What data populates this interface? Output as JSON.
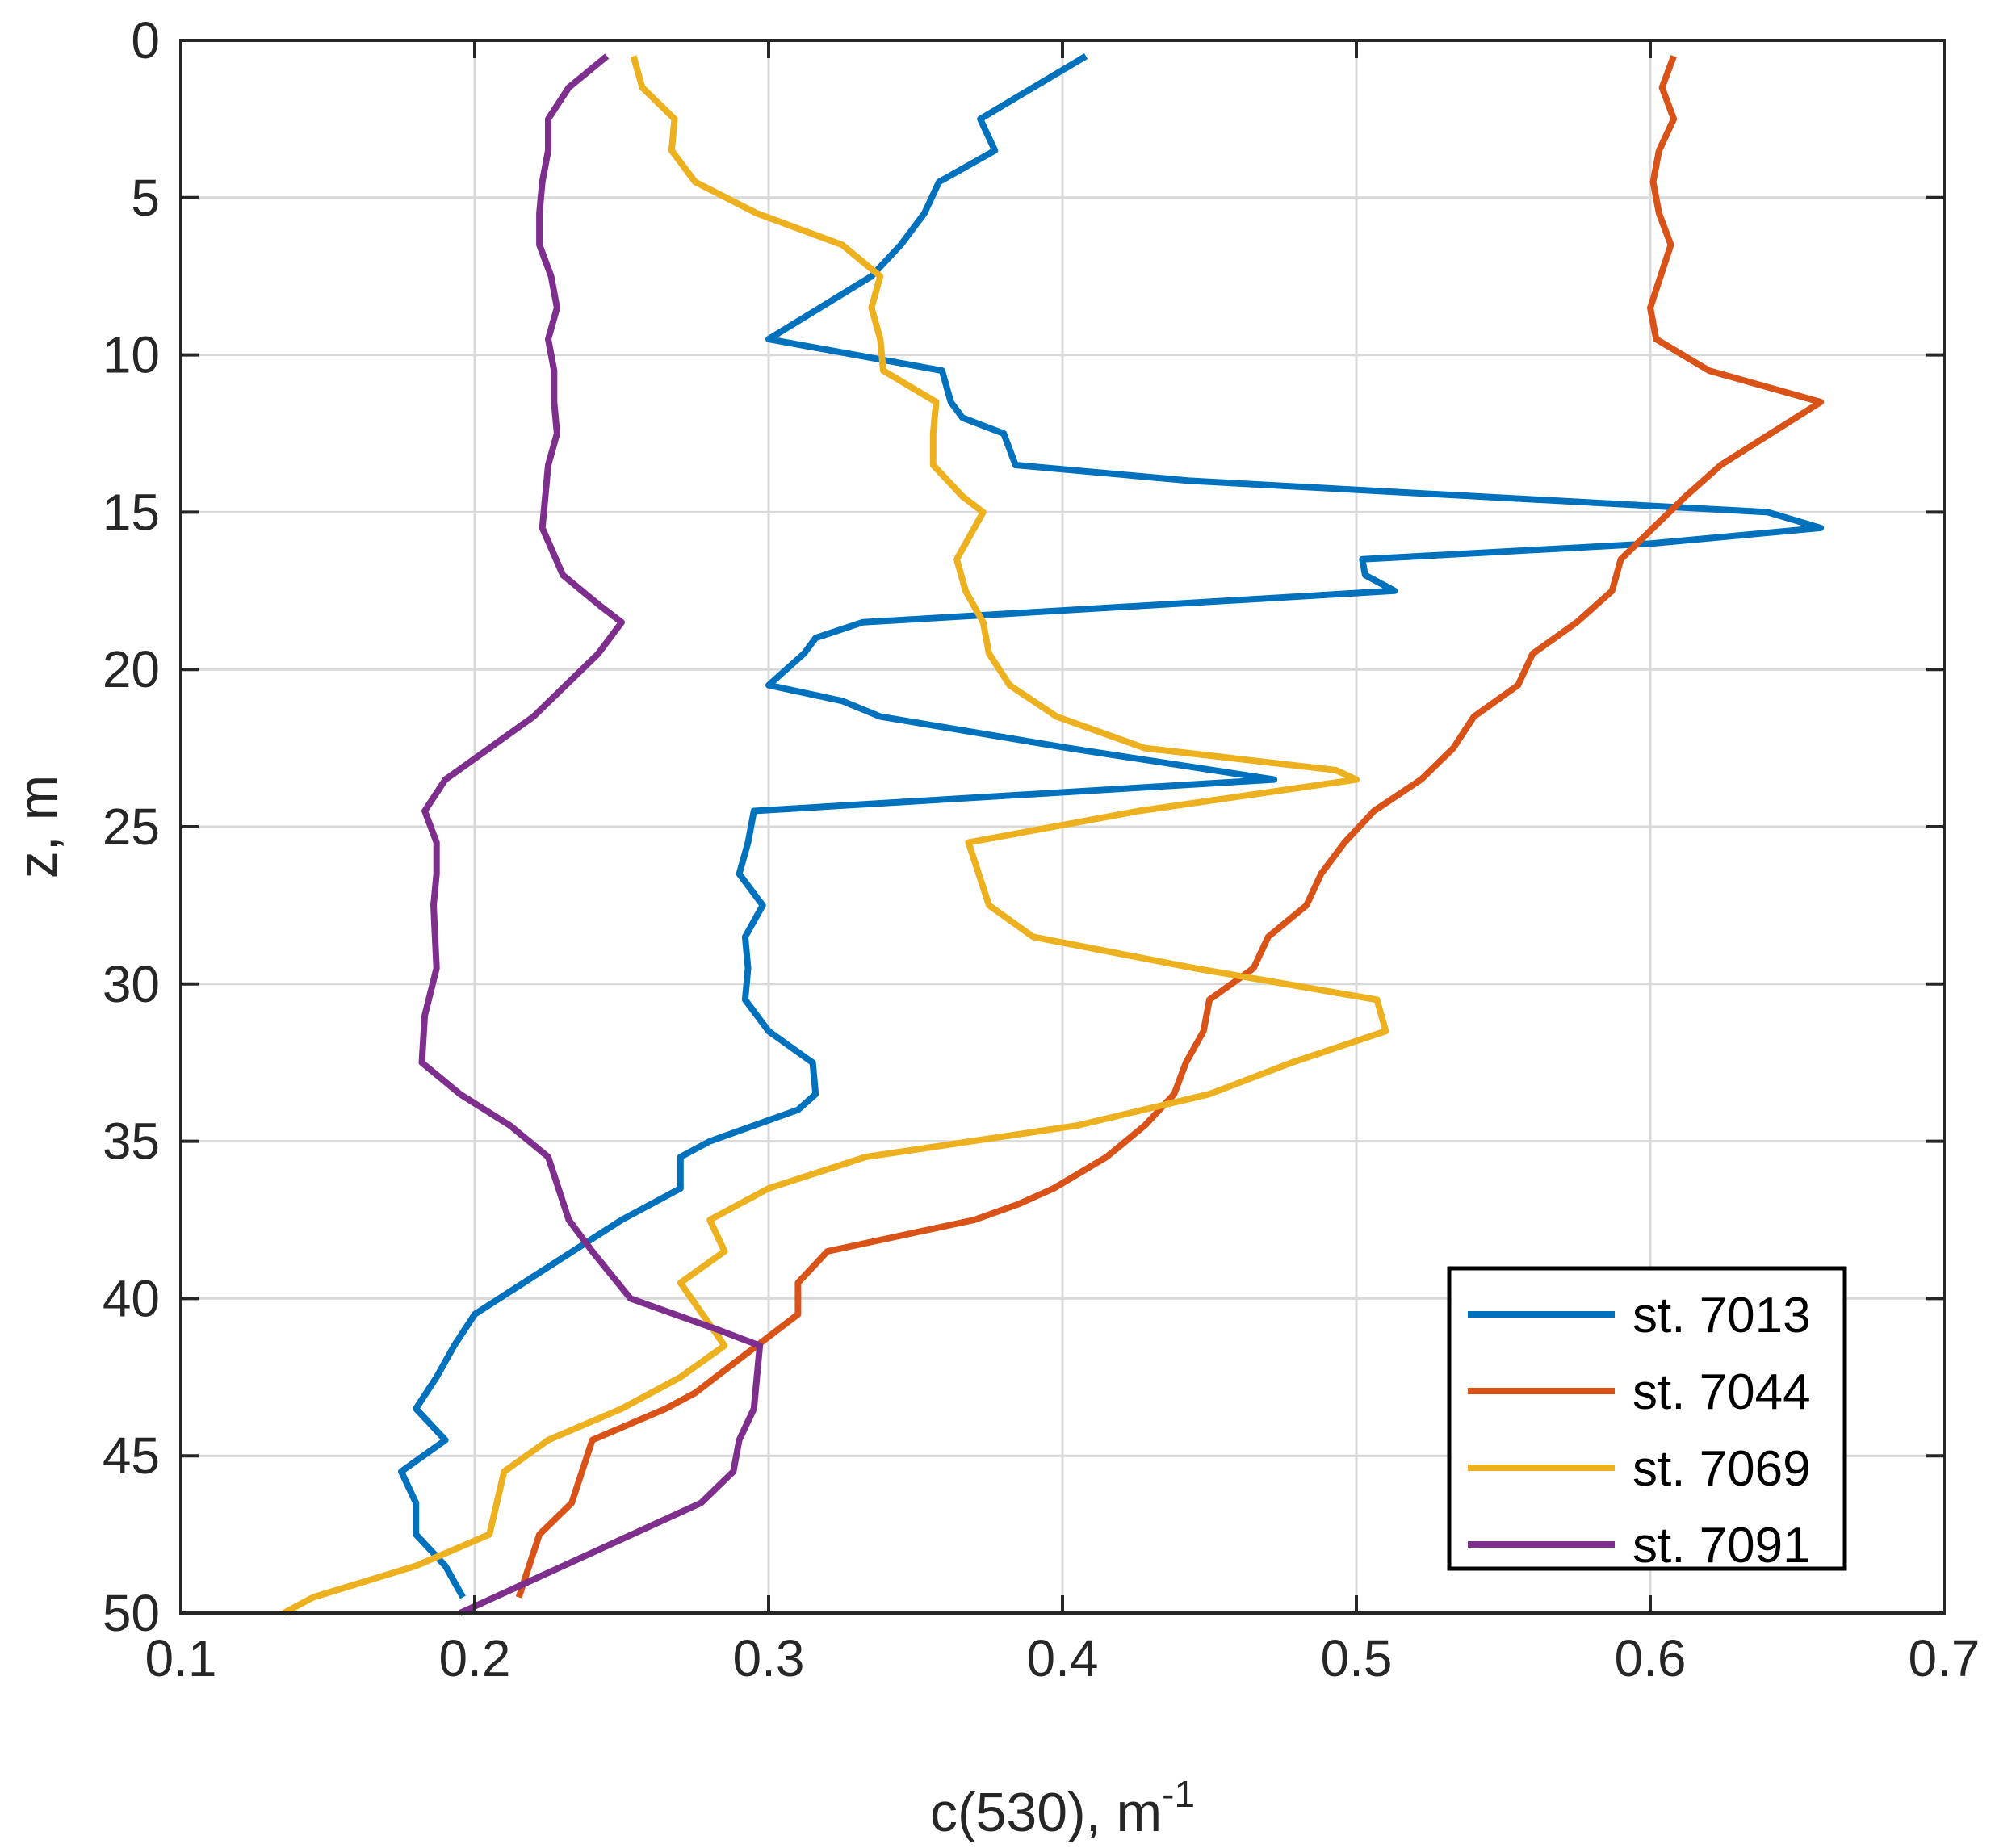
{
  "chart_data": {
    "type": "line",
    "title": "",
    "xlabel": "c(530), m",
    "xlabel_sup": "-1",
    "ylabel": "z, m",
    "xlim": [
      0.1,
      0.7
    ],
    "ylim": [
      0,
      50
    ],
    "y_reversed": true,
    "grid": true,
    "x_ticks": [
      0.1,
      0.2,
      0.3,
      0.4,
      0.5,
      0.6,
      0.7
    ],
    "x_tick_labels": [
      "0.1",
      "0.2",
      "0.3",
      "0.4",
      "0.5",
      "0.6",
      "0.7"
    ],
    "y_ticks": [
      0,
      5,
      10,
      15,
      20,
      25,
      30,
      35,
      40,
      45,
      50
    ],
    "y_tick_labels": [
      "0",
      "5",
      "10",
      "15",
      "20",
      "25",
      "30",
      "35",
      "40",
      "45",
      "50"
    ],
    "legend_position": "bottom-right",
    "series": [
      {
        "name": "st. 7013",
        "color": "#0072BD",
        "x": [
          0.408,
          0.39,
          0.372,
          0.377,
          0.358,
          0.353,
          0.345,
          0.335,
          0.3,
          0.359,
          0.362,
          0.366,
          0.38,
          0.384,
          0.443,
          0.64,
          0.658,
          0.6,
          0.502,
          0.503,
          0.513,
          0.332,
          0.316,
          0.312,
          0.3,
          0.325,
          0.338,
          0.402,
          0.472,
          0.295,
          0.293,
          0.29,
          0.298,
          0.292,
          0.293,
          0.292,
          0.3,
          0.315,
          0.316,
          0.31,
          0.28,
          0.27,
          0.27,
          0.25,
          0.225,
          0.2,
          0.193,
          0.187,
          0.18,
          0.19,
          0.175,
          0.18,
          0.18,
          0.19,
          0.196
        ],
        "y": [
          0.5,
          1.5,
          2.5,
          3.5,
          4.5,
          5.5,
          6.5,
          7.5,
          9.5,
          10.5,
          11.5,
          12,
          12.5,
          13.5,
          14,
          15,
          15.5,
          16,
          16.5,
          17,
          17.5,
          18.5,
          19,
          19.5,
          20.5,
          21,
          21.5,
          22.5,
          23.5,
          24.5,
          25.5,
          26.5,
          27.5,
          28.5,
          29.5,
          30.5,
          31.5,
          32.5,
          33.5,
          34,
          35,
          35.5,
          36.5,
          37.5,
          39,
          40.5,
          41.5,
          42.5,
          43.5,
          44.5,
          45.5,
          46.5,
          47.5,
          48.5,
          49.5
        ]
      },
      {
        "name": "st. 7044",
        "color": "#D95319",
        "x": [
          0.608,
          0.604,
          0.608,
          0.603,
          0.601,
          0.603,
          0.607,
          0.6,
          0.602,
          0.62,
          0.658,
          0.641,
          0.624,
          0.612,
          0.601,
          0.59,
          0.587,
          0.575,
          0.56,
          0.555,
          0.54,
          0.533,
          0.522,
          0.506,
          0.496,
          0.488,
          0.483,
          0.47,
          0.465,
          0.45,
          0.448,
          0.442,
          0.438,
          0.428,
          0.415,
          0.397,
          0.385,
          0.37,
          0.32,
          0.31,
          0.31,
          0.275,
          0.265,
          0.24,
          0.233,
          0.222,
          0.215
        ],
        "y": [
          0.5,
          1.5,
          2.5,
          3.5,
          4.5,
          5.5,
          6.5,
          8.5,
          9.5,
          10.5,
          11.5,
          12.5,
          13.5,
          14.5,
          15.5,
          16.5,
          17.5,
          18.5,
          19.5,
          20.5,
          21.5,
          22.5,
          23.5,
          24.5,
          25.5,
          26.5,
          27.5,
          28.5,
          29.5,
          30.5,
          31.5,
          32.5,
          33.5,
          34.5,
          35.5,
          36.5,
          37,
          37.5,
          38.5,
          39.5,
          40.5,
          43,
          43.5,
          44.5,
          46.5,
          47.5,
          49.5
        ]
      },
      {
        "name": "st. 7069",
        "color": "#EDB120",
        "x": [
          0.254,
          0.257,
          0.268,
          0.267,
          0.275,
          0.296,
          0.325,
          0.338,
          0.335,
          0.338,
          0.339,
          0.357,
          0.356,
          0.356,
          0.366,
          0.373,
          0.364,
          0.367,
          0.373,
          0.375,
          0.382,
          0.398,
          0.428,
          0.493,
          0.5,
          0.426,
          0.368,
          0.375,
          0.39,
          0.445,
          0.507,
          0.51,
          0.478,
          0.45,
          0.405,
          0.333,
          0.3,
          0.28,
          0.285,
          0.27,
          0.285,
          0.27,
          0.25,
          0.225,
          0.21,
          0.205,
          0.18,
          0.145,
          0.135
        ],
        "y": [
          0.5,
          1.5,
          2.5,
          3.5,
          4.5,
          5.5,
          6.5,
          7.5,
          8.5,
          9.5,
          10.5,
          11.5,
          12.5,
          13.5,
          14.5,
          15,
          16.5,
          17.5,
          18.5,
          19.5,
          20.5,
          21.5,
          22.5,
          23.2,
          23.5,
          24.5,
          25.5,
          27.5,
          28.5,
          29.5,
          30.5,
          31.5,
          32.5,
          33.5,
          34.5,
          35.5,
          36.5,
          37.5,
          38.5,
          39.5,
          41.5,
          42.5,
          43.5,
          44.5,
          45.5,
          47.5,
          48.5,
          49.5,
          50
        ]
      },
      {
        "name": "st. 7091",
        "color": "#7E2F8E",
        "x": [
          0.245,
          0.232,
          0.225,
          0.225,
          0.223,
          0.222,
          0.222,
          0.226,
          0.228,
          0.225,
          0.227,
          0.227,
          0.228,
          0.225,
          0.223,
          0.23,
          0.243,
          0.25,
          0.242,
          0.22,
          0.19,
          0.183,
          0.187,
          0.187,
          0.186,
          0.187,
          0.183,
          0.182,
          0.195,
          0.212,
          0.225,
          0.232,
          0.24,
          0.253,
          0.283,
          0.297,
          0.295,
          0.29,
          0.288,
          0.277,
          0.195
        ],
        "y": [
          0.5,
          1.5,
          2.5,
          3.5,
          4.5,
          5.5,
          6.5,
          7.5,
          8.5,
          9.5,
          10.5,
          11.5,
          12.5,
          13.5,
          15.5,
          17,
          18,
          18.5,
          19.5,
          21.5,
          23.5,
          24.5,
          25.5,
          26.5,
          27.5,
          29.5,
          31,
          32.5,
          33.5,
          34.5,
          35.5,
          37.5,
          38.5,
          40,
          41,
          41.5,
          43.5,
          44.5,
          45.5,
          46.5,
          50
        ]
      }
    ]
  }
}
